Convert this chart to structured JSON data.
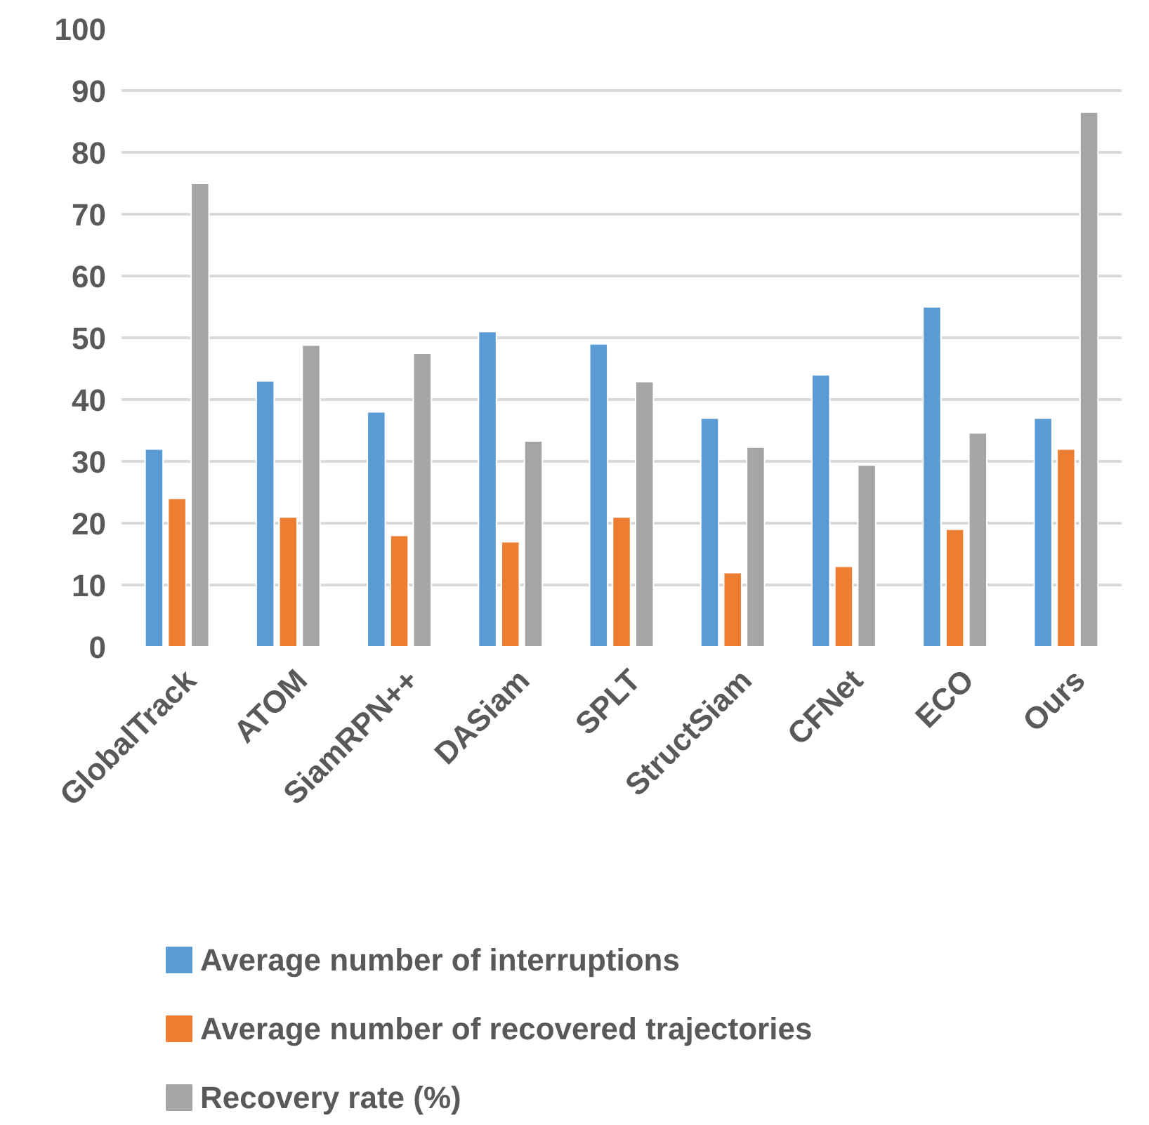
{
  "chart_data": {
    "type": "bar",
    "categories": [
      "GlobalTrack",
      "ATOM",
      "SiamRPN++",
      "DASiam",
      "SPLT",
      "StructSiam",
      "CFNet",
      "ECO",
      "Ours"
    ],
    "series": [
      {
        "name": "Average number of interruptions",
        "color": "#5b9bd5",
        "values": [
          32,
          43,
          38,
          51,
          49,
          37,
          44,
          55,
          37
        ]
      },
      {
        "name": "Average number of recovered trajectories",
        "color": "#ed7d31",
        "values": [
          24,
          21,
          18,
          17,
          21,
          12,
          13,
          19,
          32
        ]
      },
      {
        "name": "Recovery rate (%)",
        "color": "#a5a5a5",
        "values": [
          75,
          48.8,
          47.5,
          33.3,
          42.9,
          32.3,
          29.4,
          34.6,
          86.5
        ]
      }
    ],
    "ylim": [
      0,
      100
    ],
    "yticks": [
      0,
      10,
      20,
      30,
      40,
      50,
      60,
      70,
      80,
      90,
      100
    ],
    "grid": "y",
    "legend": "bottom"
  }
}
